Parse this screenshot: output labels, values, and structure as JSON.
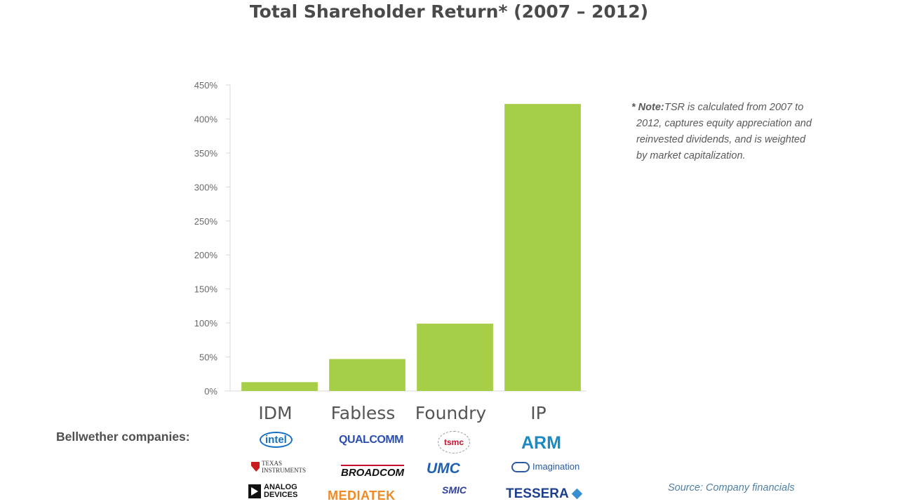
{
  "chart_data": {
    "type": "bar",
    "title": "Total Shareholder Return* (2007 – 2012)",
    "categories": [
      "IDM",
      "Fabless",
      "Foundry",
      "IP"
    ],
    "values": [
      13,
      47,
      99,
      422
    ],
    "ylim": [
      0,
      450
    ],
    "yticks": [
      0,
      50,
      100,
      150,
      200,
      250,
      300,
      350,
      400,
      450
    ],
    "ytick_labels": [
      "0%",
      "50%",
      "100%",
      "150%",
      "200%",
      "250%",
      "300%",
      "350%",
      "400%",
      "450%"
    ],
    "xlabel": "",
    "ylabel": "",
    "grid": false,
    "bar_color": "#a6ce47"
  },
  "note": {
    "lead": "* Note:",
    "text": "TSR is calculated from 2007 to 2012, captures equity appreciation and reinvested dividends, and is weighted by market capitalization."
  },
  "bellwether": {
    "label": "Bellwether companies:",
    "logos": {
      "intel": "intel",
      "ti_line1": "TEXAS",
      "ti_line2": "INSTRUMENTS",
      "adi_line1": "ANALOG",
      "adi_line2": "DEVICES",
      "qualcomm": "QUALCOMM",
      "broadcom": "BROADCOM",
      "mediatek": "MEDIATEK",
      "tsmc": "tsmc",
      "umc": "UMC",
      "smic": "SMIC",
      "arm": "ARM",
      "imagination": "Imagination",
      "tessera": "TESSERA"
    }
  },
  "source": "Source: Company financials"
}
